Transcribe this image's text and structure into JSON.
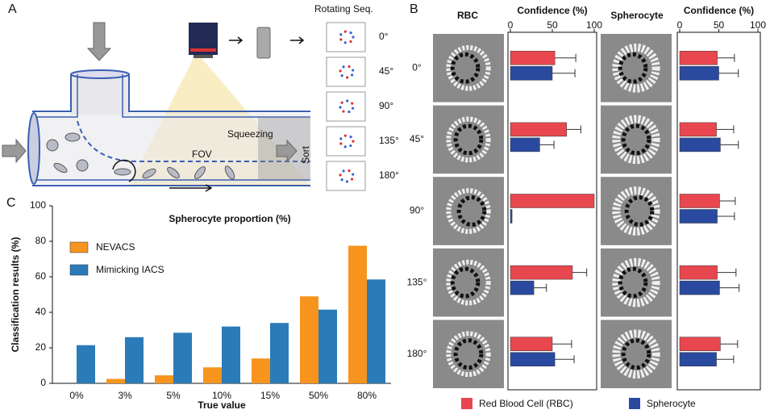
{
  "panel_a": {
    "label": "A",
    "rotating_title": "Rotating Seq.",
    "angles": [
      "0°",
      "45°",
      "90°",
      "135°",
      "180°"
    ],
    "squeezing": "Squeezing",
    "fov": "FOV",
    "sort": "Sort"
  },
  "panel_b_label": "B",
  "panel_c_label": "C",
  "chart_data": [
    {
      "type": "hbar",
      "title": "RBC",
      "xlabel": "Confidence (%)",
      "categories": [
        "0°",
        "45°",
        "90°",
        "135°",
        "180°"
      ],
      "xlim": [
        0,
        100
      ],
      "xticks": [
        0,
        50,
        100
      ],
      "series": [
        {
          "name": "Red Blood Cell (RBC)",
          "color": "#e8474f",
          "values": [
            53,
            67,
            100,
            74,
            50
          ],
          "errors": [
            25,
            17,
            null,
            17,
            23
          ]
        },
        {
          "name": "Spherocyte",
          "color": "#2a4aa0",
          "values": [
            50,
            35,
            2,
            28,
            53
          ],
          "errors": [
            27,
            17,
            null,
            15,
            23
          ]
        }
      ]
    },
    {
      "type": "hbar",
      "title": "Spherocyte",
      "xlabel": "Confidence (%)",
      "xlim": [
        0,
        100
      ],
      "xticks": [
        0,
        50,
        100
      ],
      "series": [
        {
          "color": "#e8474f",
          "values": [
            48,
            47,
            51,
            48,
            52
          ],
          "errors": [
            22,
            22,
            20,
            24,
            22
          ]
        },
        {
          "color": "#2a4aa0",
          "values": [
            50,
            52,
            48,
            51,
            47
          ],
          "errors": [
            25,
            23,
            22,
            25,
            22
          ]
        }
      ]
    },
    {
      "type": "bar",
      "title": "Spherocyte proportion (%)",
      "xlabel": "True value",
      "ylabel": "Classification results (%)",
      "categories": [
        "0%",
        "3%",
        "5%",
        "10%",
        "15%",
        "50%",
        "80%"
      ],
      "ylim": [
        0,
        100
      ],
      "yticks": [
        0,
        20,
        40,
        60,
        80,
        100
      ],
      "legend": "upper left",
      "series": [
        {
          "name": "NEVACS",
          "color": "#f7941d",
          "values": [
            0,
            2.5,
            4.5,
            9,
            14,
            49,
            77.5
          ]
        },
        {
          "name": "Mimicking IACS",
          "color": "#2b7bb9",
          "values": [
            21.5,
            26,
            28.5,
            32,
            34,
            41.5,
            58.5
          ]
        }
      ]
    }
  ]
}
